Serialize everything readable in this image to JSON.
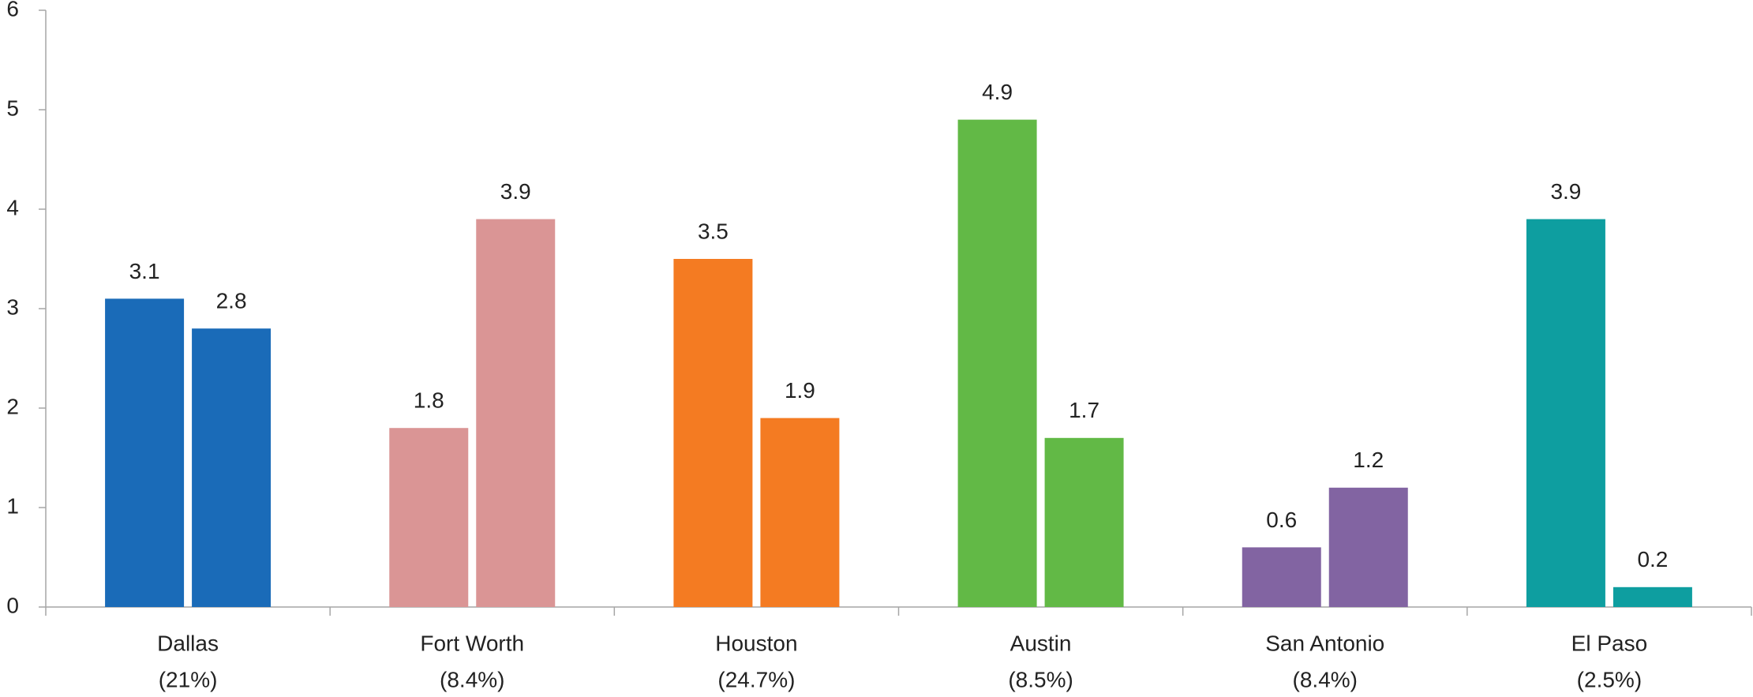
{
  "chart_data": {
    "type": "bar",
    "categories": [
      [
        "Dallas",
        "(21%)"
      ],
      [
        "Fort Worth",
        "(8.4%)"
      ],
      [
        "Houston",
        "(24.7%)"
      ],
      [
        "Austin",
        "(8.5%)"
      ],
      [
        "San Antonio",
        "(8.4%)"
      ],
      [
        "El Paso",
        "(2.5%)"
      ]
    ],
    "colors": [
      "#1a6bb8",
      "#da9595",
      "#f47b22",
      "#62b946",
      "#8264a2",
      "#0e9ea0"
    ],
    "series": [
      {
        "values": [
          3.1,
          1.8,
          3.5,
          4.9,
          0.6,
          3.9
        ]
      },
      {
        "values": [
          2.8,
          3.9,
          1.9,
          1.7,
          1.2,
          0.2
        ]
      }
    ],
    "ylim": [
      0,
      6
    ],
    "yticks": [
      0,
      1,
      2,
      3,
      4,
      5,
      6
    ],
    "grid": false
  }
}
